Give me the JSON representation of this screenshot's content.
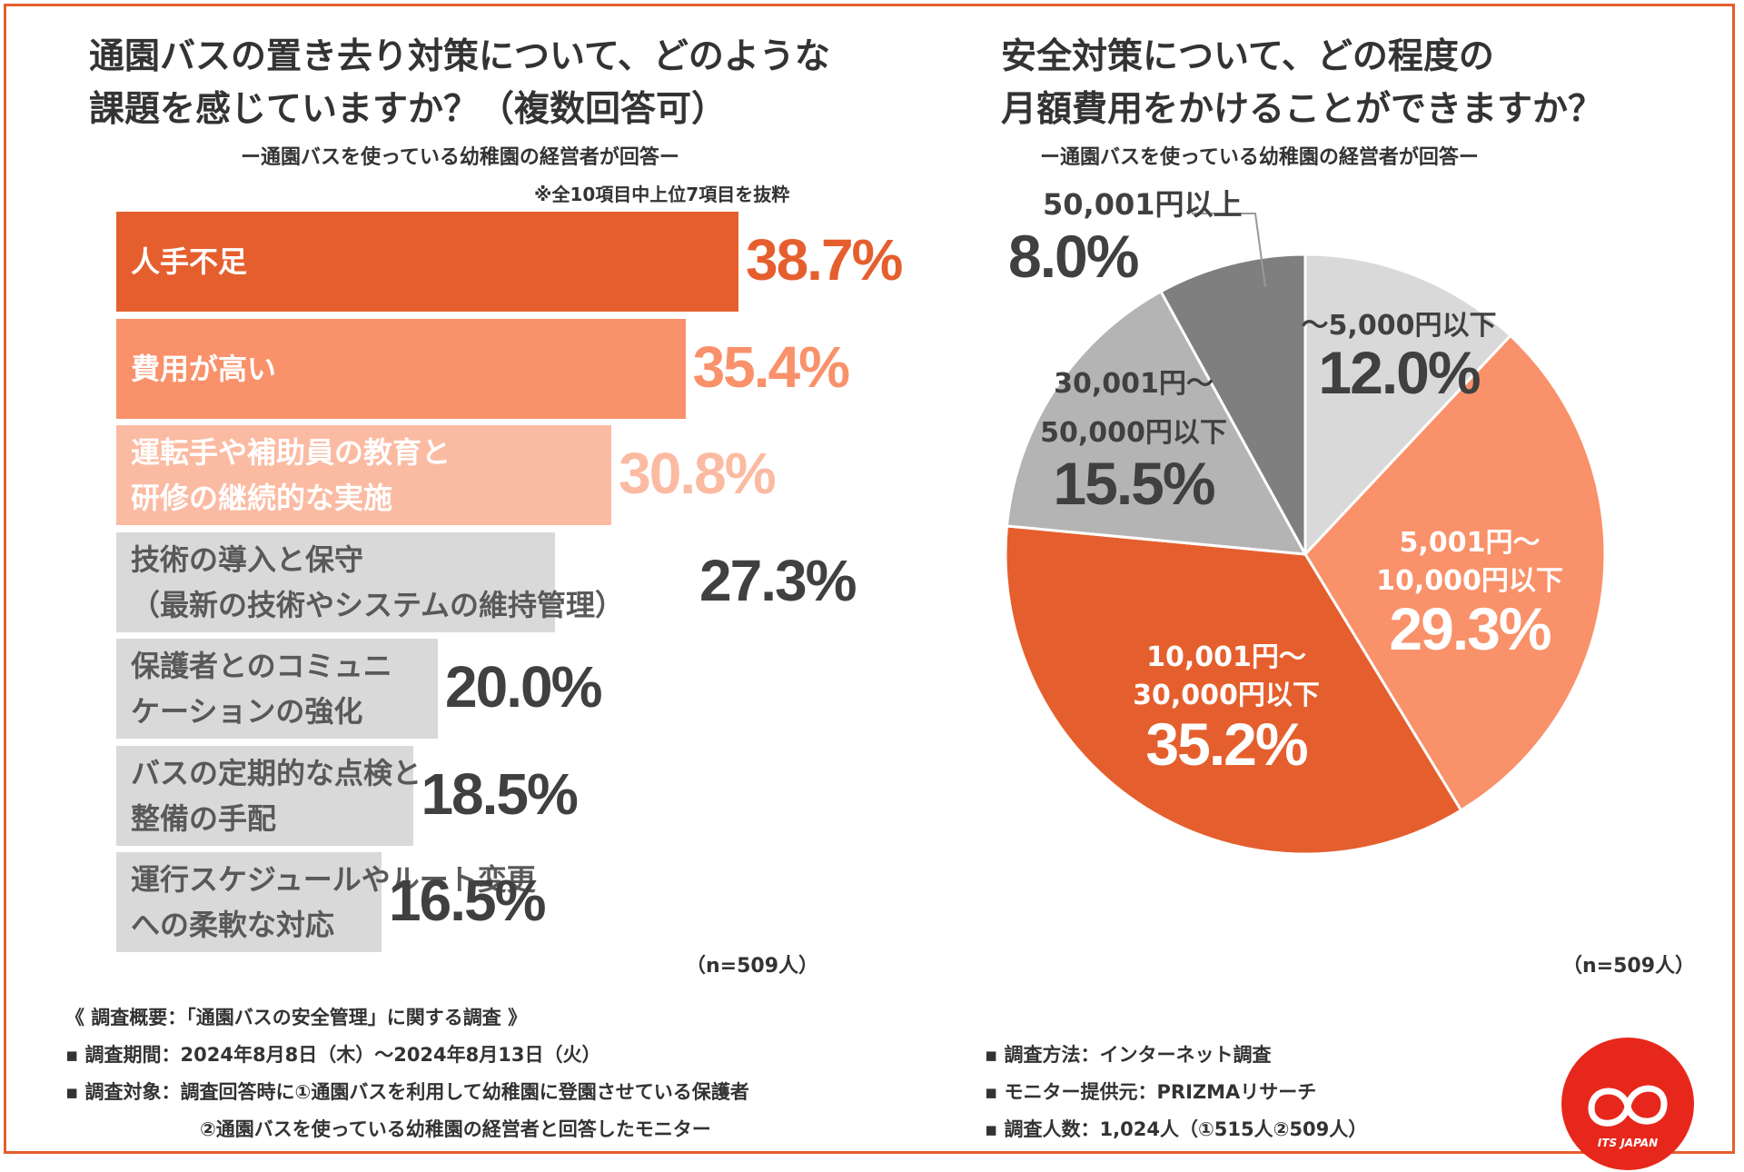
{
  "left": {
    "title_lines": [
      "通園バスの置き去り対策について、どのような",
      "課題を感じていますか？（複数回答可）"
    ],
    "subtitle": "ー通園バスを使っている幼稚園の経営者が回答ー",
    "note": "※全10項目中上位7項目を抜粋",
    "n": "（n=509人）"
  },
  "right": {
    "title_lines": [
      "安全対策について、どの程度の",
      "月額費用をかけることができますか？"
    ],
    "subtitle": "ー通園バスを使っている幼稚園の経営者が回答ー",
    "n": "（n=509人）"
  },
  "survey": {
    "heading": "《 調査概要：「通園バスの安全管理」に関する調査 》",
    "period": "▪ 調査期間：2024年8月8日（木）～2024年8月13日（火）",
    "target": "▪ 調査対象：調査回答時に①通園バスを利用して幼稚園に登園させている保護者",
    "target2": "②通園バスを使っている幼稚園の経営者と回答したモニター",
    "method": "▪ 調査方法：インターネット調査",
    "provider": "▪ モニター提供元：PRIZMAリサーチ",
    "count": "▪ 調査人数：1,024人（①515人②509人）"
  },
  "logo": {
    "text": "ITS JAPAN"
  },
  "chart_data": [
    {
      "type": "bar",
      "orientation": "horizontal",
      "title": "通園バスの置き去り対策について、どのような課題を感じていますか？（複数回答可）",
      "categories": [
        [
          "人手不足"
        ],
        [
          "費用が高い"
        ],
        [
          "運転手や補助員の教育と",
          "研修の継続的な実施"
        ],
        [
          "技術の導入と保守",
          "（最新の技術やシステムの維持管理）"
        ],
        [
          "保護者とのコミュニ",
          "ケーションの強化"
        ],
        [
          "バスの定期的な点検と",
          "整備の手配"
        ],
        [
          "運行スケジュールやルート変更",
          "への柔軟な対応"
        ]
      ],
      "values": [
        38.7,
        35.4,
        30.8,
        27.3,
        20.0,
        18.5,
        16.5
      ],
      "value_labels": [
        "38.7%",
        "35.4%",
        "30.8%",
        "27.3%",
        "20.0%",
        "18.5%",
        "16.5%"
      ],
      "colors": [
        "#E55F2E",
        "#F9916A",
        "#FBBBA2",
        "#D9D9D9",
        "#D9D9D9",
        "#D9D9D9",
        "#D9D9D9"
      ],
      "label_colors": [
        "#ffffff",
        "#ffffff",
        "#ffffff",
        "#595959",
        "#595959",
        "#595959",
        "#595959"
      ],
      "value_colors": [
        "#E55F2E",
        "#F9916A",
        "#FBBBA2",
        "#404040",
        "#404040",
        "#404040",
        "#404040"
      ],
      "xlim": [
        0,
        100
      ]
    },
    {
      "type": "pie",
      "title": "安全対策について、どの程度の月額費用をかけることができますか？",
      "slices": [
        {
          "label": [
            "～5,000円以下"
          ],
          "value": 12.0,
          "pct": "12.0%",
          "color": "#D9D9D9",
          "text_color": "#404040"
        },
        {
          "label": [
            "5,001円～",
            "10,000円以下"
          ],
          "value": 29.3,
          "pct": "29.3%",
          "color": "#F9916A",
          "text_color": "#ffffff"
        },
        {
          "label": [
            "10,001円～",
            "30,000円以下"
          ],
          "value": 35.2,
          "pct": "35.2%",
          "color": "#E55F2E",
          "text_color": "#ffffff"
        },
        {
          "label": [
            "30,001円～",
            "50,000円以下"
          ],
          "value": 15.5,
          "pct": "15.5%",
          "color": "#B4B4B4",
          "text_color": "#404040"
        },
        {
          "label": [
            "50,001円以上"
          ],
          "value": 8.0,
          "pct": "8.0%",
          "color": "#7F7F7F",
          "text_color": "#404040"
        }
      ]
    }
  ]
}
